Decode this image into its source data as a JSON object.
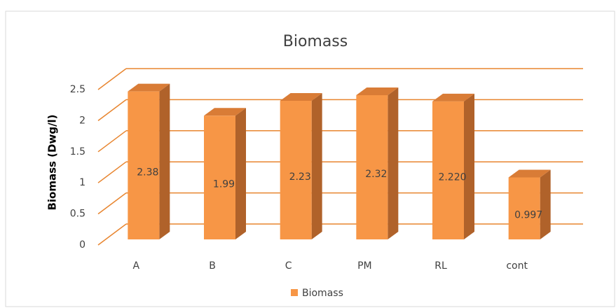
{
  "chart_data": {
    "type": "bar3d",
    "title": "Biomass",
    "y_axis_label": "Biomass (Dwg/l)",
    "categories": [
      "A",
      "B",
      "C",
      "PM",
      "RL",
      "cont"
    ],
    "series": [
      {
        "name": "Biomass",
        "color": "#f79646",
        "values": [
          2.38,
          1.99,
          2.23,
          2.32,
          2.22,
          0.997
        ],
        "value_labels": [
          "2.38",
          "1.99",
          "2.23",
          "2.32",
          "2.220",
          "0.997"
        ]
      }
    ],
    "ylim": [
      0,
      2.5
    ],
    "yticks": [
      0,
      0.5,
      1,
      1.5,
      2,
      2.5
    ],
    "grid": true,
    "legend": "bottom"
  }
}
